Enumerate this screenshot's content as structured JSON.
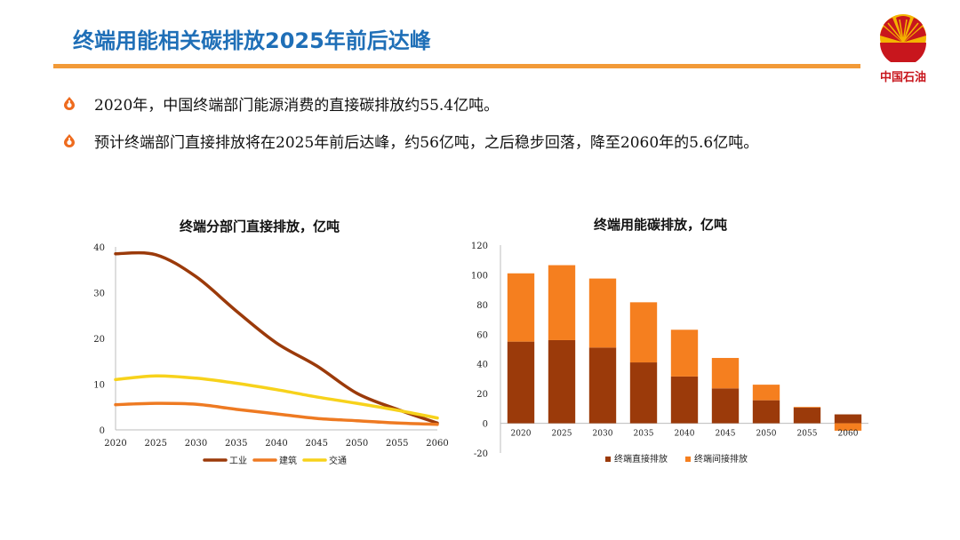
{
  "header": {
    "title": "终端用能相关碳排放2025年前后达峰",
    "logo_text": "中国石油",
    "colors": {
      "title": "#1f6fb7",
      "rule": "#f29a38",
      "logo_red": "#c8161d",
      "logo_yellow": "#f4b400"
    }
  },
  "bullets": [
    {
      "icon": "flame-bullet-icon",
      "text": "2020年，中国终端部门能源消费的直接碳排放约55.4亿吨。"
    },
    {
      "icon": "flame-bullet-icon",
      "text": "预计终端部门直接排放将在2025年前后达峰，约56亿吨，之后稳步回落，降至2060年的5.6亿吨。"
    }
  ],
  "chart_data": [
    {
      "type": "line",
      "title": "终端分部门直接排放，亿吨",
      "x": [
        2020,
        2025,
        2030,
        2035,
        2040,
        2045,
        2050,
        2055,
        2060
      ],
      "ylim": [
        0,
        40
      ],
      "yticks": [
        0,
        10,
        20,
        30,
        40
      ],
      "grid": false,
      "legend_position": "bottom",
      "series": [
        {
          "name": "工业",
          "color": "#9b3a0a",
          "values": [
            38.5,
            38.3,
            33.5,
            26,
            19,
            14,
            8,
            4.5,
            1.5
          ]
        },
        {
          "name": "建筑",
          "color": "#ee7a22",
          "values": [
            5.5,
            5.8,
            5.6,
            4.5,
            3.5,
            2.5,
            2,
            1.5,
            1.2
          ]
        },
        {
          "name": "交通",
          "color": "#f7d21b",
          "values": [
            11,
            11.8,
            11.3,
            10.2,
            8.8,
            7.2,
            5.8,
            4.3,
            2.6
          ]
        }
      ]
    },
    {
      "type": "bar",
      "stacked": true,
      "title": "终端用能碳排放，亿吨",
      "categories": [
        "2020",
        "2025",
        "2030",
        "2035",
        "2040",
        "2045",
        "2050",
        "2055",
        "2060"
      ],
      "ylim": [
        -20,
        120
      ],
      "yticks": [
        -20,
        0,
        20,
        40,
        60,
        80,
        100,
        120
      ],
      "grid": false,
      "legend_position": "bottom",
      "series": [
        {
          "name": "终端直接排放",
          "color": "#9b3a0a",
          "values": [
            55,
            56,
            51,
            41,
            31.5,
            23.5,
            15.5,
            10.5,
            6
          ]
        },
        {
          "name": "终端间接排放",
          "color": "#f57f1f",
          "values": [
            46,
            50.5,
            46.5,
            40.5,
            31.5,
            20.5,
            10.5,
            0.5,
            -5
          ]
        }
      ]
    }
  ]
}
